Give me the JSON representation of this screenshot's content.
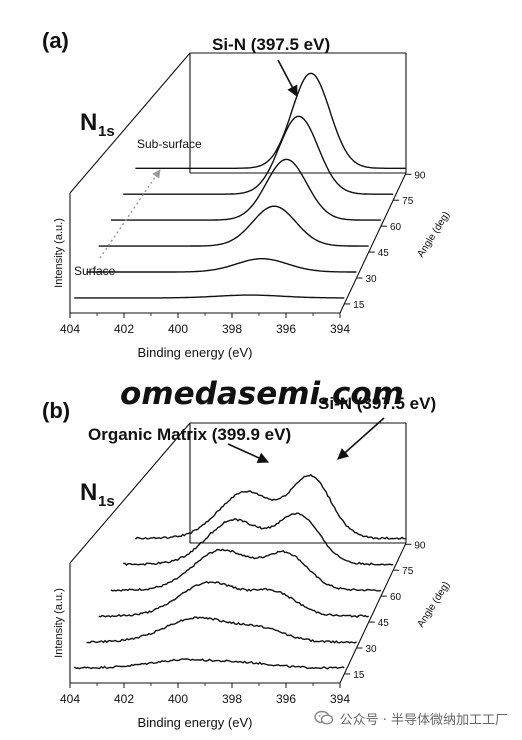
{
  "chart_data": [
    {
      "type": "line",
      "panel_label": "(a)",
      "element_label": "N",
      "element_subscript": "1s",
      "xlabel": "Binding energy (eV)",
      "ylabel": "Intensity (a.u.)",
      "x_ticks": [
        404,
        402,
        400,
        398,
        396,
        394
      ],
      "xlim": [
        404,
        394
      ],
      "depth_label": "Angle (deg)",
      "depth_ticks": [
        "15",
        "30",
        "45",
        "60",
        "75",
        "90"
      ],
      "annotations": [
        {
          "text": "Si-N (397.5 eV)",
          "binding_energy": 397.5
        },
        {
          "text": "Sub-surface"
        },
        {
          "text": "Surface"
        }
      ],
      "series": [
        {
          "angle": 15,
          "peaks": [
            {
              "center": 397.5,
              "height": 0.03,
              "width": 1.2
            }
          ],
          "noise": 0
        },
        {
          "angle": 30,
          "peaks": [
            {
              "center": 397.5,
              "height": 0.14,
              "width": 0.95
            }
          ],
          "noise": 0
        },
        {
          "angle": 45,
          "peaks": [
            {
              "center": 397.5,
              "height": 0.42,
              "width": 0.8
            }
          ],
          "noise": 0
        },
        {
          "angle": 60,
          "peaks": [
            {
              "center": 397.5,
              "height": 0.64,
              "width": 0.75
            }
          ],
          "noise": 0
        },
        {
          "angle": 75,
          "peaks": [
            {
              "center": 397.5,
              "height": 0.82,
              "width": 0.72
            }
          ],
          "noise": 0
        },
        {
          "angle": 90,
          "peaks": [
            {
              "center": 397.5,
              "height": 1.0,
              "width": 0.7
            }
          ],
          "noise": 0
        }
      ]
    },
    {
      "type": "line",
      "panel_label": "(b)",
      "element_label": "N",
      "element_subscript": "1s",
      "xlabel": "Binding energy (eV)",
      "ylabel": "Intensity (a.u.)",
      "x_ticks": [
        404,
        402,
        400,
        398,
        396,
        394
      ],
      "xlim": [
        404,
        394
      ],
      "depth_label": "Angle (deg)",
      "depth_ticks": [
        "15",
        "30",
        "45",
        "60",
        "75",
        "90"
      ],
      "annotations": [
        {
          "text": "Organic Matrix (399.9 eV)",
          "binding_energy": 399.9
        },
        {
          "text": "Si-N (397.5 eV)",
          "binding_energy": 397.5
        }
      ],
      "series": [
        {
          "angle": 15,
          "peaks": [
            {
              "center": 399.9,
              "height": 0.1,
              "width": 1.3
            },
            {
              "center": 397.5,
              "height": 0.05,
              "width": 1.0
            }
          ],
          "noise": 0.012
        },
        {
          "angle": 30,
          "peaks": [
            {
              "center": 399.9,
              "height": 0.3,
              "width": 1.2
            },
            {
              "center": 397.5,
              "height": 0.15,
              "width": 0.9
            }
          ],
          "noise": 0.012
        },
        {
          "angle": 45,
          "peaks": [
            {
              "center": 399.9,
              "height": 0.42,
              "width": 1.1
            },
            {
              "center": 397.5,
              "height": 0.28,
              "width": 0.85
            }
          ],
          "noise": 0.012
        },
        {
          "angle": 60,
          "peaks": [
            {
              "center": 399.9,
              "height": 0.5,
              "width": 1.05
            },
            {
              "center": 397.5,
              "height": 0.44,
              "width": 0.8
            }
          ],
          "noise": 0.012
        },
        {
          "angle": 75,
          "peaks": [
            {
              "center": 399.9,
              "height": 0.55,
              "width": 1.0
            },
            {
              "center": 397.5,
              "height": 0.6,
              "width": 0.78
            }
          ],
          "noise": 0.012
        },
        {
          "angle": 90,
          "peaks": [
            {
              "center": 399.9,
              "height": 0.58,
              "width": 1.0
            },
            {
              "center": 397.5,
              "height": 0.75,
              "width": 0.75
            }
          ],
          "noise": 0.012
        }
      ]
    }
  ],
  "watermark": {
    "text": "omedasemi.com",
    "color": "#2f3fd8"
  },
  "footer": {
    "text": "公众号 · 半导体微纳加工工厂",
    "icon": "wechat-icon"
  }
}
